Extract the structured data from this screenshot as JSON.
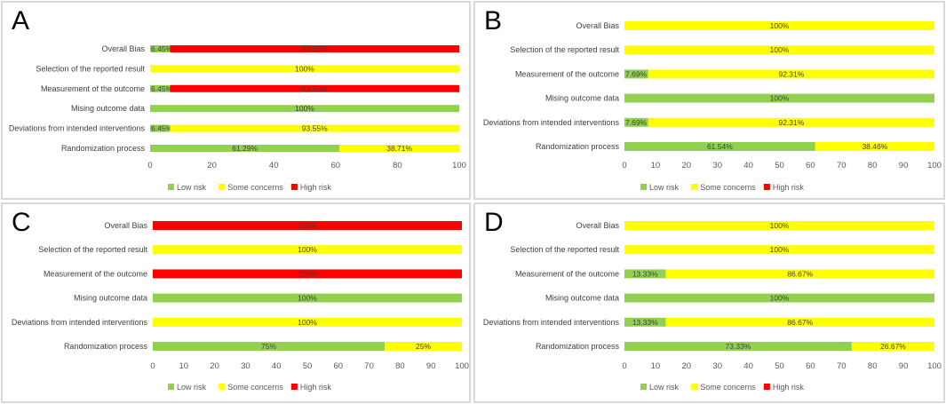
{
  "chart_data": [
    {
      "panel": "A",
      "type": "bar",
      "orientation": "horizontal",
      "stacked": true,
      "categories": [
        "Overall Bias",
        "Selection of the reported result",
        "Measurement of the outcome",
        "Mising outcome data",
        "Deviations from intended interventions",
        "Randomization process"
      ],
      "series": [
        {
          "name": "Low risk",
          "color": "#92d050",
          "values": [
            6.45,
            0,
            6.45,
            100,
            6.45,
            61.29
          ],
          "labels": [
            "6.45%",
            "",
            "6.45%",
            "100%",
            "6.45%",
            "61.29%"
          ]
        },
        {
          "name": "Some concerns",
          "color": "#ffff00",
          "values": [
            0,
            100,
            0,
            0,
            93.55,
            38.71
          ],
          "labels": [
            "",
            "100%",
            "",
            "",
            "93.55%",
            "38.71%"
          ]
        },
        {
          "name": "High risk",
          "color": "#ff0000",
          "values": [
            93.55,
            0,
            93.55,
            0,
            0,
            0
          ],
          "labels": [
            "93.55%",
            "",
            "93.55%",
            "",
            "",
            ""
          ]
        }
      ],
      "xlim": [
        0,
        100
      ],
      "xticks": [
        "0",
        "20",
        "40",
        "60",
        "80",
        "100"
      ],
      "legend": "bottom"
    },
    {
      "panel": "B",
      "type": "bar",
      "orientation": "horizontal",
      "stacked": true,
      "categories": [
        "Overall Bias",
        "Selection of the reported result",
        "Measurement of the outcome",
        "Mising outcome data",
        "Deviations from intended interventions",
        "Randomization process"
      ],
      "series": [
        {
          "name": "Low risk",
          "color": "#92d050",
          "values": [
            0,
            0,
            7.69,
            100,
            7.69,
            61.54
          ],
          "labels": [
            "",
            "",
            "7.69%",
            "100%",
            "7.69%",
            "61.54%"
          ]
        },
        {
          "name": "Some concerns",
          "color": "#ffff00",
          "values": [
            100,
            100,
            92.31,
            0,
            92.31,
            38.46
          ],
          "labels": [
            "100%",
            "100%",
            "92.31%",
            "",
            "92.31%",
            "38.46%"
          ]
        },
        {
          "name": "High risk",
          "color": "#ff0000",
          "values": [
            0,
            0,
            0,
            0,
            0,
            0
          ],
          "labels": [
            "",
            "",
            "",
            "",
            "",
            ""
          ]
        }
      ],
      "xlim": [
        0,
        100
      ],
      "xticks": [
        "0",
        "10",
        "20",
        "30",
        "40",
        "50",
        "60",
        "70",
        "80",
        "90",
        "100"
      ],
      "legend": "bottom"
    },
    {
      "panel": "C",
      "type": "bar",
      "orientation": "horizontal",
      "stacked": true,
      "categories": [
        "Overall Bias",
        "Selection of the reported result",
        "Measurement of the outcome",
        "Mising outcome data",
        "Deviations from intended interventions",
        "Randomization process"
      ],
      "series": [
        {
          "name": "Low risk",
          "color": "#92d050",
          "values": [
            0,
            0,
            0,
            100,
            0,
            75
          ],
          "labels": [
            "",
            "",
            "",
            "100%",
            "",
            "75%"
          ]
        },
        {
          "name": "Some concerns",
          "color": "#ffff00",
          "values": [
            0,
            100,
            0,
            0,
            100,
            25
          ],
          "labels": [
            "",
            "100%",
            "",
            "",
            "100%",
            "25%"
          ]
        },
        {
          "name": "High risk",
          "color": "#ff0000",
          "values": [
            100,
            0,
            100,
            0,
            0,
            0
          ],
          "labels": [
            "100%",
            "",
            "100%",
            "",
            "",
            ""
          ]
        }
      ],
      "xlim": [
        0,
        100
      ],
      "xticks": [
        "0",
        "10",
        "20",
        "30",
        "40",
        "50",
        "60",
        "70",
        "80",
        "90",
        "100"
      ],
      "legend": "bottom"
    },
    {
      "panel": "D",
      "type": "bar",
      "orientation": "horizontal",
      "stacked": true,
      "categories": [
        "Overall Bias",
        "Selection of the reported result",
        "Measurement of the outcome",
        "Mising outcome data",
        "Deviations from intended interventions",
        "Randomization process"
      ],
      "series": [
        {
          "name": "Low risk",
          "color": "#92d050",
          "values": [
            0,
            0,
            13.33,
            100,
            13.33,
            73.33
          ],
          "labels": [
            "",
            "",
            "13.33%",
            "100%",
            "13.33%",
            "73.33%"
          ]
        },
        {
          "name": "Some concerns",
          "color": "#ffff00",
          "values": [
            100,
            100,
            86.67,
            0,
            86.67,
            26.67
          ],
          "labels": [
            "100%",
            "100%",
            "86.67%",
            "",
            "86.67%",
            "26.67%"
          ]
        },
        {
          "name": "High risk",
          "color": "#ff0000",
          "values": [
            0,
            0,
            0,
            0,
            0,
            0
          ],
          "labels": [
            "",
            "",
            "",
            "",
            "",
            ""
          ]
        }
      ],
      "xlim": [
        0,
        100
      ],
      "xticks": [
        "0",
        "10",
        "20",
        "30",
        "40",
        "50",
        "60",
        "70",
        "80",
        "90",
        "100"
      ],
      "legend": "bottom"
    }
  ]
}
